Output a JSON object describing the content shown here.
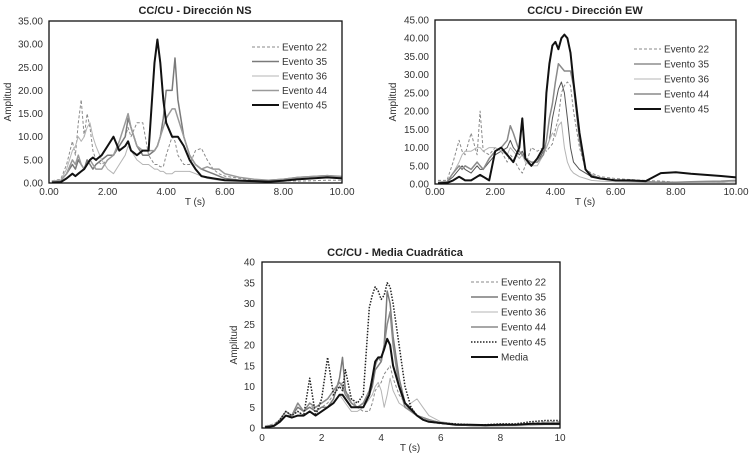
{
  "chart_data": [
    {
      "type": "line",
      "title": "CC/CU - Dirección NS",
      "xlabel": "T (s)",
      "ylabel": "Amplitud",
      "xlim": [
        0,
        10
      ],
      "ylim": [
        0,
        35
      ],
      "xticks": [
        "0.00",
        "2.00",
        "4.00",
        "6.00",
        "8.00",
        "10.00"
      ],
      "xtick_values": [
        0,
        2,
        4,
        6,
        8,
        10
      ],
      "yticks": [
        "0.00",
        "5.00",
        "10.00",
        "15.00",
        "20.00",
        "25.00",
        "30.00",
        "35.00"
      ],
      "ytick_values": [
        0,
        5,
        10,
        15,
        20,
        25,
        30,
        35
      ],
      "legend_position": "top-right",
      "x": [
        0.1,
        0.4,
        0.6,
        0.8,
        0.9,
        1.0,
        1.1,
        1.2,
        1.3,
        1.4,
        1.5,
        1.6,
        1.8,
        2.0,
        2.2,
        2.4,
        2.6,
        2.7,
        2.8,
        3.0,
        3.2,
        3.4,
        3.6,
        3.7,
        3.8,
        3.9,
        4.0,
        4.2,
        4.3,
        4.4,
        4.6,
        4.8,
        5.0,
        5.2,
        5.4,
        5.6,
        5.8,
        6.0,
        6.5,
        7.0,
        7.5,
        8.0,
        8.5,
        9.0,
        9.5,
        10.0
      ],
      "series": [
        {
          "name": "Evento 22",
          "style": "dashed",
          "color": "#8a8a8a",
          "width": 1,
          "values": [
            0.5,
            0.8,
            4,
            9,
            6,
            13,
            18,
            10,
            15,
            12,
            7,
            5,
            4,
            5,
            6,
            8,
            10,
            12,
            10,
            13,
            13,
            6,
            4,
            4,
            3.5,
            3.5,
            6,
            10,
            9,
            6,
            4,
            4,
            7,
            7.5,
            5,
            3,
            2,
            1.5,
            1,
            0.6,
            0.5,
            0.5,
            0.4,
            0.5,
            0.6,
            0.6
          ]
        },
        {
          "name": "Evento 35",
          "style": "solid",
          "color": "#7a7a7a",
          "width": 1.5,
          "values": [
            0.3,
            0.5,
            2,
            4,
            3,
            5,
            4,
            3,
            5,
            4,
            3,
            4,
            5,
            6,
            6,
            8,
            10,
            14,
            12,
            8,
            6,
            6,
            7,
            8,
            10,
            14,
            20,
            20,
            27,
            18,
            10,
            6,
            4,
            3,
            2.5,
            2,
            1.5,
            1,
            0.6,
            0.5,
            0.6,
            0.8,
            1.2,
            1.4,
            1.6,
            1.4
          ]
        },
        {
          "name": "Evento 36",
          "style": "solid",
          "color": "#b5b5b5",
          "width": 1,
          "values": [
            0.5,
            0.6,
            3,
            7,
            8,
            10,
            9,
            10,
            12,
            13,
            10,
            8,
            5,
            3,
            2,
            4,
            6,
            8,
            7,
            5,
            4,
            4,
            3,
            3,
            2.5,
            2.5,
            2,
            2,
            2.5,
            2.5,
            2.5,
            2.5,
            2,
            1.5,
            1,
            0.8,
            0.6,
            0.5,
            0.5,
            0.4,
            0.4,
            0.5,
            0.8,
            1.0,
            1.2,
            1.0
          ]
        },
        {
          "name": "Evento 44",
          "style": "solid",
          "color": "#9a9a9a",
          "width": 1.5,
          "values": [
            0.3,
            0.5,
            2,
            5,
            4,
            6,
            4,
            3,
            4,
            5,
            4,
            3,
            3,
            5,
            6,
            9,
            13,
            15,
            12,
            8,
            7,
            7,
            7,
            8,
            10,
            12,
            14,
            16,
            16,
            14,
            10,
            6,
            4,
            3,
            3.5,
            3,
            3,
            2,
            1.2,
            0.8,
            0.6,
            0.8,
            1.2,
            1.4,
            1.6,
            1.3
          ]
        },
        {
          "name": "Evento 45",
          "style": "solid",
          "color": "#111111",
          "width": 2,
          "values": [
            0.1,
            0.2,
            1,
            2,
            1.5,
            2,
            2.5,
            3,
            4,
            5,
            5.5,
            5,
            6,
            8,
            10,
            7,
            8,
            9,
            7,
            6,
            7,
            7,
            26,
            31,
            26,
            18,
            13,
            10,
            10,
            10,
            8,
            5,
            3,
            1.5,
            1.2,
            1,
            0.8,
            0.6,
            0.5,
            0.4,
            0.3,
            0.5,
            0.8,
            1.0,
            1.2,
            1.0
          ]
        }
      ]
    },
    {
      "type": "line",
      "title": "CC/CU - Dirección EW",
      "xlabel": "T (s)",
      "ylabel": "Amplitud",
      "xlim": [
        0,
        10
      ],
      "ylim": [
        0,
        45
      ],
      "xticks": [
        "0.00",
        "2.00",
        "4.00",
        "6.00",
        "8.00",
        "10.00"
      ],
      "xtick_values": [
        0,
        2,
        4,
        6,
        8,
        10
      ],
      "yticks": [
        "0.00",
        "5.00",
        "10.00",
        "15.00",
        "20.00",
        "25.00",
        "30.00",
        "35.00",
        "40.00",
        "45.00"
      ],
      "ytick_values": [
        0,
        5,
        10,
        15,
        20,
        25,
        30,
        35,
        40,
        45
      ],
      "legend_position": "top-right",
      "x": [
        0.1,
        0.4,
        0.6,
        0.8,
        0.9,
        1.0,
        1.2,
        1.4,
        1.5,
        1.6,
        1.8,
        2.0,
        2.2,
        2.4,
        2.5,
        2.6,
        2.8,
        2.9,
        3.0,
        3.2,
        3.4,
        3.6,
        3.7,
        3.8,
        3.9,
        4.0,
        4.1,
        4.2,
        4.3,
        4.4,
        4.5,
        4.6,
        4.8,
        5.0,
        5.2,
        5.5,
        6.0,
        6.5,
        7.0,
        7.5,
        8.0,
        8.5,
        9.0,
        9.5,
        10.0
      ],
      "series": [
        {
          "name": "Evento 22",
          "style": "dashed",
          "color": "#8a8a8a",
          "width": 1,
          "values": [
            1,
            1,
            6,
            12,
            9,
            8,
            14,
            8,
            20,
            9,
            8,
            10,
            9,
            6,
            8,
            7,
            4,
            3,
            5,
            10,
            9,
            10,
            9,
            10,
            11,
            15,
            18,
            25,
            27,
            28,
            27,
            20,
            10,
            4,
            3,
            2,
            1.5,
            1.2,
            1,
            0.8,
            0.5,
            0.5,
            0.5,
            0.5,
            0.6
          ]
        },
        {
          "name": "Evento 35",
          "style": "solid",
          "color": "#555555",
          "width": 1,
          "values": [
            0.5,
            0.6,
            2,
            4,
            5,
            4,
            3,
            5,
            4,
            4,
            6,
            8,
            9,
            10,
            12,
            10,
            8,
            9,
            7,
            6,
            6,
            9,
            10,
            12,
            18,
            22,
            26,
            28,
            25,
            18,
            10,
            6,
            4,
            3,
            2,
            1.5,
            1,
            0.8,
            0.6,
            0.5,
            0.5,
            0.5,
            0.5,
            0.5,
            0.6
          ]
        },
        {
          "name": "Evento 36",
          "style": "solid",
          "color": "#b5b5b5",
          "width": 1,
          "values": [
            0.5,
            0.6,
            3,
            6,
            8,
            9,
            9,
            10,
            10,
            9,
            10,
            10,
            9,
            8,
            10,
            9,
            7,
            8,
            6,
            5,
            5,
            8,
            10,
            12,
            14,
            13,
            16,
            17,
            10,
            6,
            4,
            3,
            2,
            1.5,
            1,
            0.8,
            0.6,
            0.5,
            0.4,
            0.4,
            0.4,
            0.4,
            0.4,
            0.5,
            0.6
          ]
        },
        {
          "name": "Evento 44",
          "style": "solid",
          "color": "#8a8a8a",
          "width": 1.5,
          "values": [
            0.5,
            0.6,
            3,
            5,
            4,
            5,
            4,
            6,
            5,
            4,
            7,
            9,
            10,
            12,
            16,
            14,
            9,
            8,
            7,
            6,
            6,
            8,
            12,
            18,
            22,
            28,
            33,
            32,
            31,
            31,
            31,
            27,
            12,
            4,
            2.5,
            1.5,
            1,
            0.8,
            0.6,
            0.5,
            0.5,
            0.6,
            0.7,
            0.8,
            1.0
          ]
        },
        {
          "name": "Evento 45",
          "style": "solid",
          "color": "#111111",
          "width": 2,
          "values": [
            0.2,
            0.3,
            1,
            2,
            1.5,
            1,
            1,
            2,
            2.5,
            2,
            1,
            9,
            10,
            8,
            7,
            6,
            10,
            18,
            7,
            5,
            7,
            10,
            25,
            33,
            38,
            39,
            37,
            40,
            41,
            40,
            36,
            28,
            14,
            4,
            2,
            1.5,
            1,
            1,
            0.8,
            3,
            3.2,
            2.8,
            2.5,
            2.2,
            1.8
          ]
        }
      ]
    },
    {
      "type": "line",
      "title": "CC/CU - Media Cuadrática",
      "xlabel": "T (s)",
      "ylabel": "Amplitud",
      "xlim": [
        0,
        10
      ],
      "ylim": [
        0,
        40
      ],
      "xticks": [
        "0",
        "2",
        "4",
        "6",
        "8",
        "10"
      ],
      "xtick_values": [
        0,
        2,
        4,
        6,
        8,
        10
      ],
      "yticks": [
        "0",
        "5",
        "10",
        "15",
        "20",
        "25",
        "30",
        "35",
        "40"
      ],
      "ytick_values": [
        0,
        5,
        10,
        15,
        20,
        25,
        30,
        35,
        40
      ],
      "legend_position": "top-right",
      "x": [
        0.1,
        0.4,
        0.6,
        0.8,
        1.0,
        1.2,
        1.4,
        1.6,
        1.8,
        2.0,
        2.2,
        2.4,
        2.6,
        2.7,
        2.8,
        3.0,
        3.2,
        3.4,
        3.6,
        3.7,
        3.8,
        3.9,
        4.0,
        4.1,
        4.2,
        4.3,
        4.4,
        4.6,
        4.8,
        5.0,
        5.2,
        5.4,
        5.6,
        6.0,
        6.5,
        7.0,
        7.5,
        8.0,
        8.5,
        9.0,
        9.5,
        10.0
      ],
      "series": [
        {
          "name": "Evento 22",
          "style": "dashed",
          "color": "#8a8a8a",
          "width": 1,
          "values": [
            0.5,
            1,
            2,
            4,
            3,
            5,
            4,
            6,
            4,
            5,
            6,
            8,
            10,
            11,
            9,
            7,
            5,
            4,
            4,
            6,
            9,
            10,
            11,
            13,
            14,
            15,
            12,
            8,
            6,
            5,
            3,
            2,
            1.5,
            1,
            0.8,
            0.6,
            0.5,
            0.5,
            0.6,
            1.2,
            1.5,
            1.5
          ]
        },
        {
          "name": "Evento 35",
          "style": "solid",
          "color": "#7a7a7a",
          "width": 1.5,
          "values": [
            0.3,
            0.5,
            1.5,
            3,
            3,
            5,
            4,
            5,
            4,
            5,
            5,
            7,
            12,
            17,
            9,
            6,
            5,
            6,
            8,
            10,
            14,
            15,
            16,
            20,
            33,
            30,
            22,
            12,
            6,
            4,
            3,
            2.5,
            2,
            1.2,
            0.8,
            0.6,
            0.5,
            0.6,
            0.8,
            1.0,
            1.2,
            1.2
          ]
        },
        {
          "name": "Evento 36",
          "style": "solid",
          "color": "#b5b5b5",
          "width": 1,
          "values": [
            0.5,
            0.8,
            2,
            4,
            3,
            4,
            3,
            4,
            3,
            4,
            5,
            6,
            8,
            7,
            6,
            4,
            4,
            5,
            7,
            8,
            10,
            11,
            9,
            5,
            8,
            12,
            9,
            6,
            5,
            6,
            7,
            5,
            3,
            1.5,
            1,
            0.8,
            0.6,
            0.5,
            0.5,
            0.6,
            0.8,
            0.8
          ]
        },
        {
          "name": "Evento 44",
          "style": "solid",
          "color": "#8a8a8a",
          "width": 1.5,
          "values": [
            0.3,
            0.5,
            2,
            4,
            3,
            6,
            4,
            6,
            5,
            6,
            7,
            9,
            11,
            10,
            8,
            6,
            5,
            6,
            9,
            12,
            15,
            17,
            16,
            20,
            25,
            28,
            20,
            10,
            5,
            4,
            3,
            2.5,
            2,
            1.2,
            0.8,
            0.6,
            0.5,
            0.6,
            0.8,
            1.0,
            1.2,
            1.0
          ]
        },
        {
          "name": "Evento 45",
          "style": "dotted",
          "color": "#222222",
          "width": 1.5,
          "values": [
            0.2,
            0.5,
            2,
            4,
            3,
            4,
            3,
            12,
            3,
            7,
            17,
            8,
            10,
            9,
            14,
            7,
            6,
            8,
            29,
            32,
            34,
            33,
            31,
            32,
            35,
            34,
            30,
            20,
            10,
            5,
            3,
            2,
            1.5,
            1.2,
            1,
            0.8,
            0.8,
            1,
            1,
            1.5,
            1.8,
            1.8
          ]
        },
        {
          "name": "Media",
          "style": "solid",
          "color": "#111111",
          "width": 2,
          "values": [
            0.2,
            0.5,
            1.5,
            3,
            2.5,
            3,
            3,
            4,
            3,
            4,
            5,
            6,
            8,
            8,
            7,
            5,
            5,
            5,
            8,
            12,
            16,
            17,
            17,
            19,
            21.5,
            20,
            15,
            10,
            6,
            4.5,
            3,
            2,
            1.5,
            1.2,
            0.8,
            0.8,
            0.7,
            0.8,
            0.8,
            1,
            1,
            1
          ]
        }
      ]
    }
  ]
}
